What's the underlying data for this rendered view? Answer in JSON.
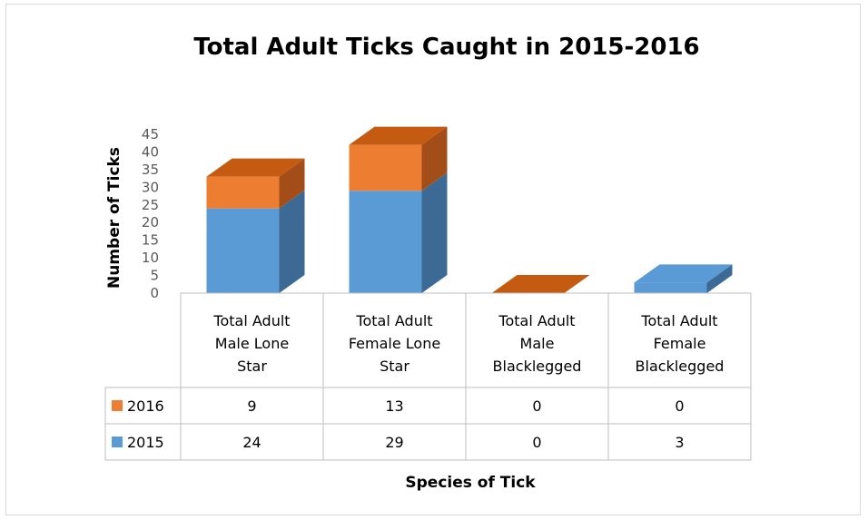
{
  "colors": {
    "series_2015": "#5b9bd5",
    "series_2015_top": "#5b9bd5",
    "series_2015_side": "#3c6a95",
    "series_2016": "#ed7d31",
    "series_2016_top": "#c55a11",
    "series_2016_side": "#a34e19",
    "table_border": "#bfbfbf"
  },
  "chart_data": {
    "type": "bar",
    "stacked": true,
    "style": "3d-column-with-data-table",
    "title": "Total Adult Ticks Caught in 2015-2016",
    "xlabel": "Species of Tick",
    "ylabel": "Number of Ticks",
    "ylim": [
      0,
      45
    ],
    "yticks": [
      "0",
      "5",
      "10",
      "15",
      "20",
      "25",
      "30",
      "35",
      "40",
      "45"
    ],
    "categories": [
      [
        "Total Adult",
        "Male Lone",
        "Star"
      ],
      [
        "Total Adult",
        "Female Lone",
        "Star"
      ],
      [
        "Total Adult",
        "Male",
        "Blacklegged"
      ],
      [
        "Total Adult",
        "Female",
        "Blacklegged"
      ]
    ],
    "series": [
      {
        "name": "2015",
        "values": [
          24,
          29,
          0,
          3
        ]
      },
      {
        "name": "2016",
        "values": [
          9,
          13,
          0,
          0
        ]
      }
    ],
    "table_rows": [
      {
        "name": "2016",
        "values": [
          "9",
          "13",
          "0",
          "0"
        ]
      },
      {
        "name": "2015",
        "values": [
          "24",
          "29",
          "0",
          "3"
        ]
      }
    ],
    "grid": false,
    "legend": "data-table"
  }
}
